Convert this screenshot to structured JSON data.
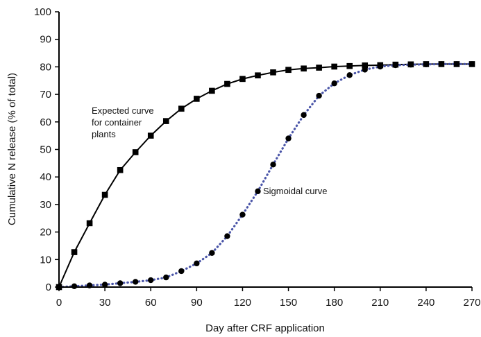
{
  "chart_data": {
    "type": "line",
    "title": "",
    "xlabel": "Day after CRF application",
    "ylabel": "Cumulative N release (% of total)",
    "xlim": [
      0,
      270
    ],
    "ylim": [
      0,
      100
    ],
    "xticks": [
      "0",
      "30",
      "60",
      "90",
      "120",
      "150",
      "180",
      "210",
      "240",
      "270"
    ],
    "yticks": [
      "0",
      "10",
      "20",
      "30",
      "40",
      "50",
      "60",
      "70",
      "80",
      "90",
      "100"
    ],
    "grid": false,
    "legend": "none",
    "annotations": [
      {
        "lines": [
          "Expected curve",
          "for container",
          "plants"
        ]
      },
      {
        "lines": [
          "Sigmoidal curve"
        ]
      }
    ],
    "series": [
      {
        "style": "solid-black-square-markers",
        "color": "#000000",
        "x": [
          0,
          10,
          20,
          30,
          40,
          50,
          60,
          70,
          80,
          90,
          100,
          110,
          120,
          130,
          140,
          150,
          160,
          170,
          180,
          190,
          200,
          210,
          220,
          230,
          240,
          250,
          260,
          270
        ],
        "y": [
          0,
          12.7,
          23.2,
          33.5,
          42.5,
          49,
          55,
          60.3,
          64.8,
          68.4,
          71.3,
          73.8,
          75.6,
          76.9,
          78,
          78.9,
          79.4,
          79.7,
          80.1,
          80.3,
          80.5,
          80.6,
          80.8,
          80.9,
          81,
          81,
          81,
          81
        ]
      },
      {
        "style": "dotted-blue-circle-markers",
        "color": "#4a55a8",
        "x": [
          0,
          10,
          20,
          30,
          40,
          50,
          60,
          70,
          80,
          90,
          100,
          110,
          120,
          130,
          140,
          150,
          160,
          170,
          180,
          190,
          200,
          210,
          220,
          230,
          240,
          250,
          260,
          270
        ],
        "y": [
          0,
          0.3,
          0.6,
          0.9,
          1.4,
          1.9,
          2.5,
          3.5,
          5.8,
          8.6,
          12.4,
          18.5,
          26.3,
          34.8,
          44.5,
          54,
          62.5,
          69.5,
          74,
          77,
          79,
          80.1,
          80.6,
          80.8,
          80.9,
          81,
          81,
          81
        ]
      }
    ]
  }
}
